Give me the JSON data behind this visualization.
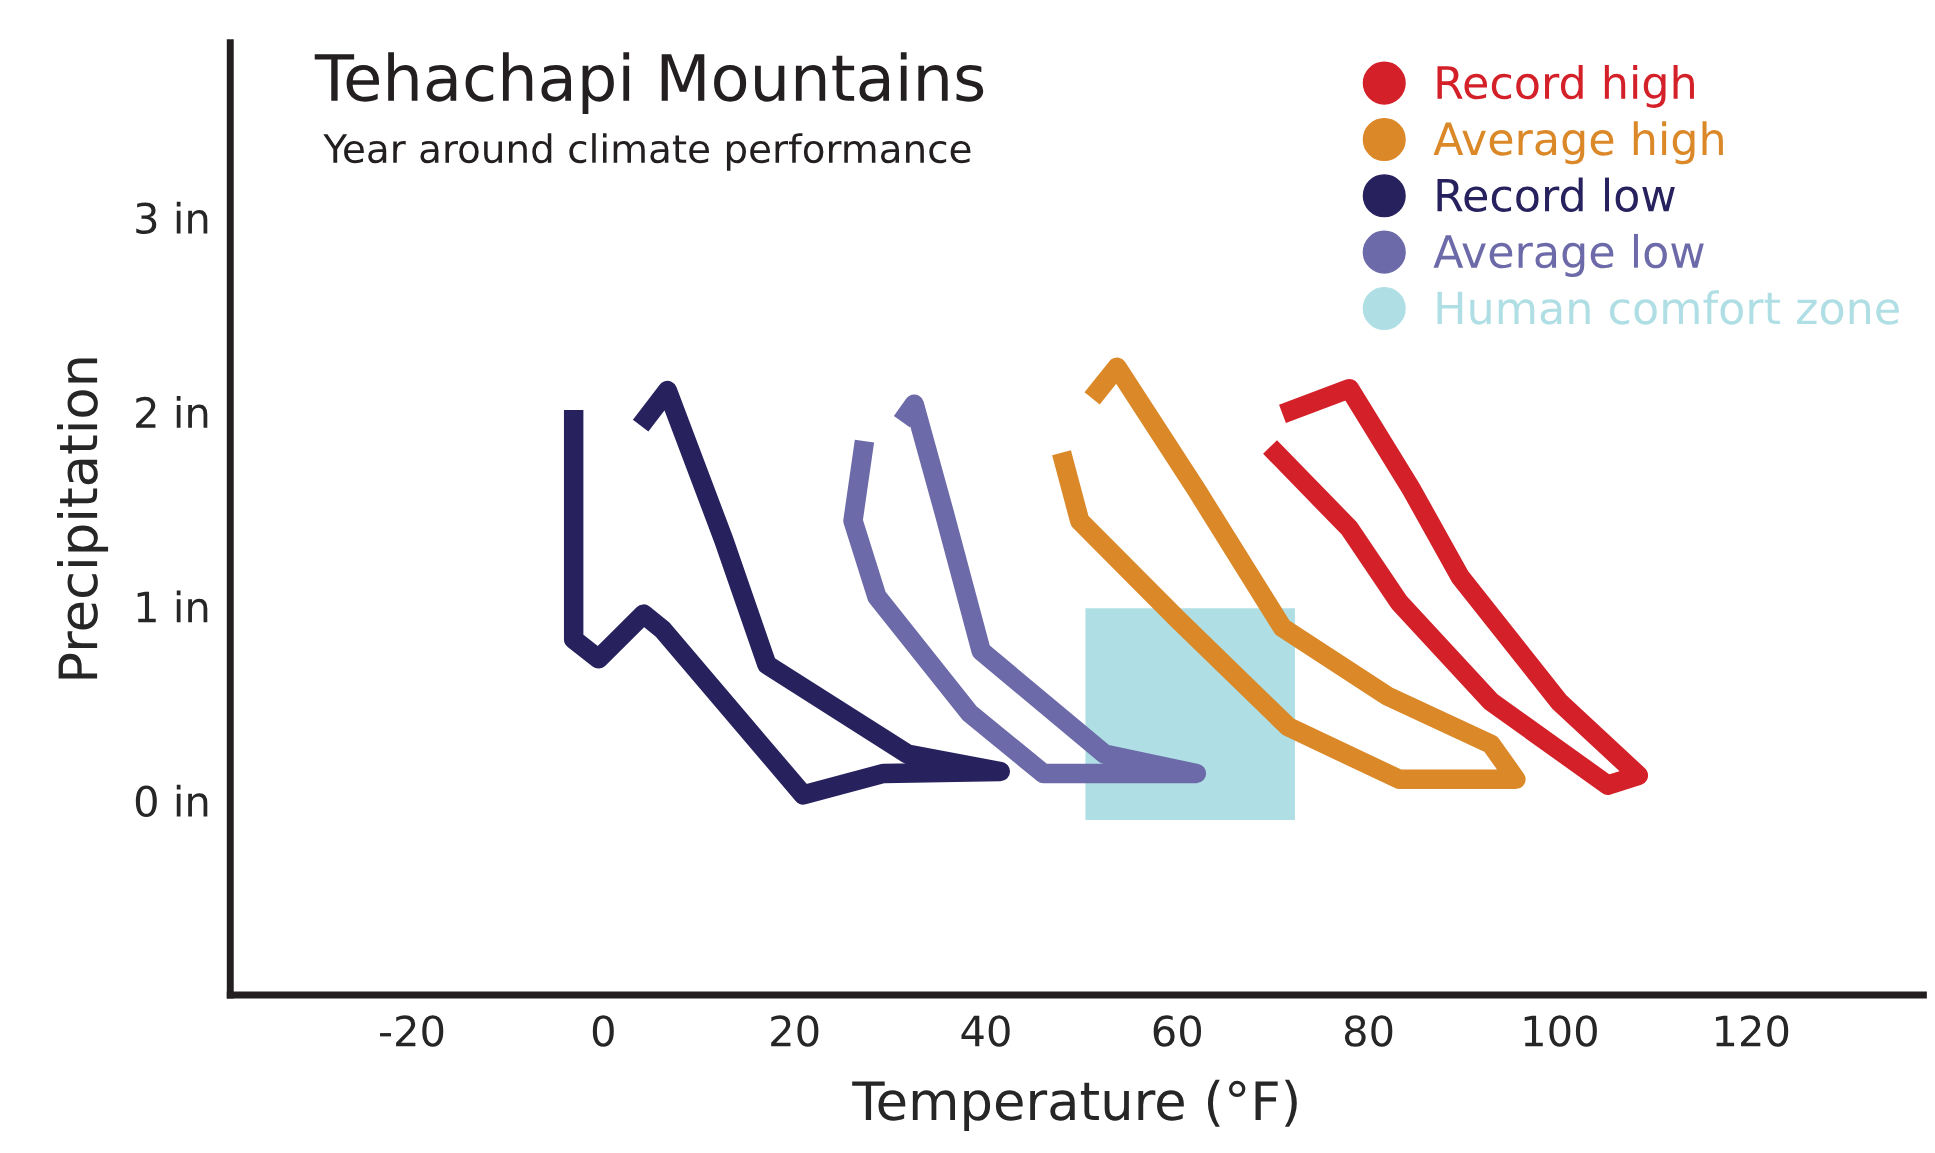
{
  "chart_data": {
    "type": "line",
    "title": "Tehachapi Mountains",
    "subtitle": "Year around climate performance",
    "xlabel": "Temperature (°F)",
    "ylabel": "Precipitation",
    "xlim": [
      -39,
      138
    ],
    "xticks": [
      -20,
      0,
      20,
      40,
      60,
      80,
      100,
      120
    ],
    "ylim": [
      -1,
      3.9
    ],
    "yticks": [
      {
        "value": 0,
        "label": "0 in"
      },
      {
        "value": 1,
        "label": "1 in"
      },
      {
        "value": 2,
        "label": "2 in"
      },
      {
        "value": 3,
        "label": "3 in"
      }
    ],
    "grid": false,
    "legend": "top right",
    "marker": "none",
    "line_style": "solid",
    "series": [
      {
        "name": "Record high",
        "color": "#d42029",
        "x": [
          69.7,
          78.0,
          83.2,
          92.8,
          105.0,
          108.2,
          99.9,
          89.6,
          84.5,
          78.0,
          71.0
        ],
        "values": [
          1.82,
          1.4,
          1.02,
          0.51,
          0.08,
          0.13,
          0.51,
          1.15,
          1.6,
          2.12,
          1.99
        ]
      },
      {
        "name": "Average high",
        "color": "#db8828",
        "x": [
          47.9,
          49.8,
          60.1,
          71.6,
          83.2,
          95.4,
          92.8,
          81.9,
          71.0,
          62.0,
          53.7,
          51.1
        ],
        "values": [
          1.79,
          1.44,
          0.93,
          0.38,
          0.11,
          0.11,
          0.29,
          0.54,
          0.89,
          1.6,
          2.23,
          2.07
        ]
      },
      {
        "name": "Record low",
        "color": "#27225e",
        "x": [
          -3.1,
          -3.1,
          -0.5,
          4.2,
          6.2,
          20.9,
          29.3,
          41.5,
          31.8,
          17.1,
          12.6,
          6.7,
          3.9
        ],
        "values": [
          2.01,
          0.83,
          0.73,
          0.96,
          0.88,
          0.03,
          0.14,
          0.15,
          0.24,
          0.7,
          1.34,
          2.11,
          1.93
        ]
      },
      {
        "name": "Average low",
        "color": "#6c6aa8",
        "x": [
          27.3,
          26.1,
          28.6,
          38.3,
          46.0,
          62.0,
          52.4,
          39.5,
          35.7,
          32.5,
          31.2
        ],
        "values": [
          1.85,
          1.44,
          1.05,
          0.45,
          0.14,
          0.14,
          0.24,
          0.77,
          1.47,
          2.04,
          1.95
        ]
      },
      {
        "name": "Human comfort zone",
        "type": "area",
        "color": "#afdfe4",
        "x": [
          50.4,
          50.4,
          72.3,
          72.3
        ],
        "values": [
          -0.1,
          0.99,
          0.99,
          -0.1
        ]
      }
    ]
  }
}
